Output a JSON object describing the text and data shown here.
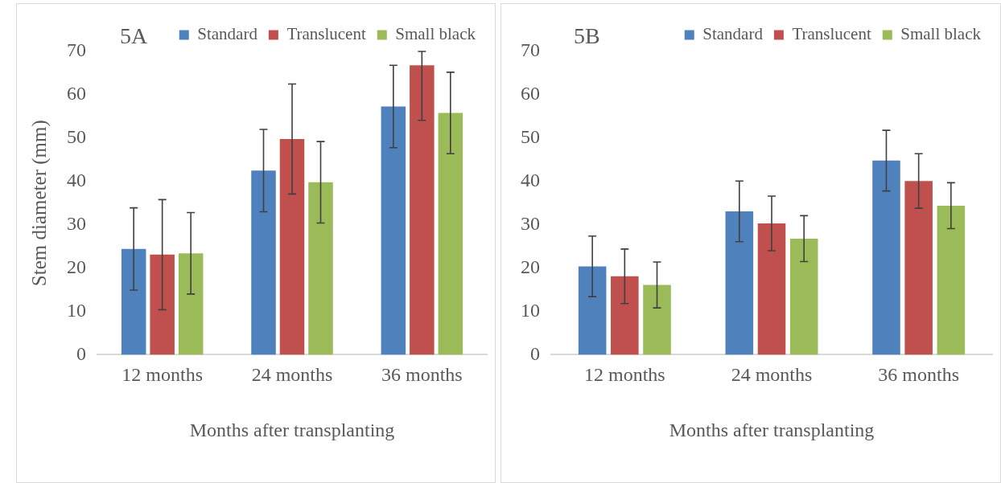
{
  "chart_data": [
    {
      "type": "bar",
      "title": "5A",
      "xlabel": "Months after transplanting",
      "ylabel": "Stem diameter (mm)",
      "categories": [
        "12 months",
        "24 months",
        "36 months"
      ],
      "series": [
        {
          "name": "Standard",
          "color": "#4f81bd",
          "values": [
            24.4,
            42.5,
            57.3
          ],
          "errors": [
            9.5,
            9.5,
            9.5
          ]
        },
        {
          "name": "Translucent",
          "color": "#c0504d",
          "values": [
            23.1,
            49.8,
            66.8
          ],
          "errors": [
            12.7,
            12.7,
            [
              54.1,
              70
            ]
          ]
        },
        {
          "name": "Small black",
          "color": "#9bbb59",
          "values": [
            23.4,
            39.8,
            55.8
          ],
          "errors": [
            9.4,
            9.4,
            9.4
          ]
        }
      ],
      "ylim": [
        0,
        70
      ],
      "yticks": [
        0,
        10,
        20,
        30,
        40,
        50,
        60,
        70
      ],
      "grid": false,
      "legend": "top"
    },
    {
      "type": "bar",
      "title": "5B",
      "xlabel": "Months after transplanting",
      "categories": [
        "12 months",
        "24 months",
        "36 months"
      ],
      "series": [
        {
          "name": "Standard",
          "color": "#4f81bd",
          "values": [
            20.4,
            33.1,
            44.8
          ],
          "errors": [
            7,
            7,
            7
          ]
        },
        {
          "name": "Translucent",
          "color": "#c0504d",
          "values": [
            18.1,
            30.3,
            40.1
          ],
          "errors": [
            6.3,
            6.3,
            6.3
          ]
        },
        {
          "name": "Small black",
          "color": "#9bbb59",
          "values": [
            16.1,
            26.8,
            34.4
          ],
          "errors": [
            5.3,
            5.3,
            5.3
          ]
        }
      ],
      "ylim": [
        0,
        70
      ],
      "yticks": [
        0,
        10,
        20,
        30,
        40,
        50,
        60,
        70
      ],
      "grid": false,
      "legend": "top"
    }
  ]
}
